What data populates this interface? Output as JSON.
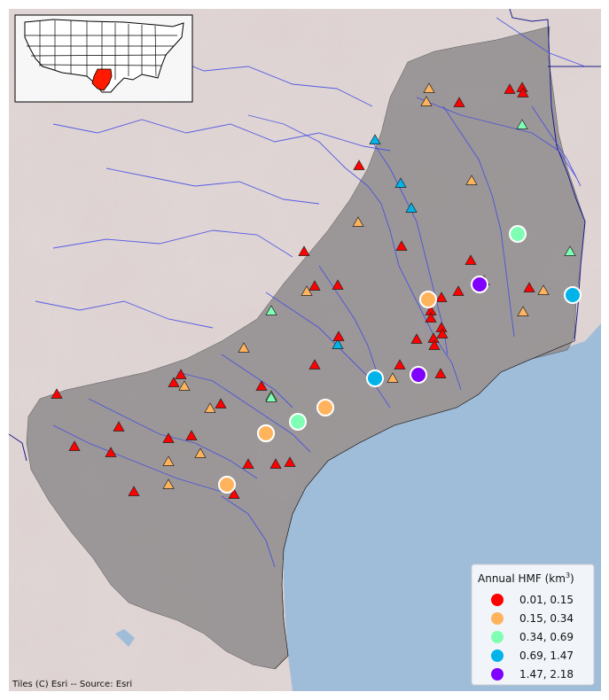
{
  "map": {
    "attribution": "Tiles (C) Esri -- Source: Esri",
    "colors": {
      "land": "#ddd2d1",
      "water": "#9fbcd9",
      "basin": "#8f8c8d",
      "rivers": "#3f45e6",
      "state_outline": "#1b1b8a",
      "inset_highlight": "#ff1a00"
    }
  },
  "legend": {
    "title": "Annual HMF (km",
    "title_sup": "3",
    "title_close": ")",
    "items": [
      {
        "label": "0.01, 0.15",
        "color": "#ff0000"
      },
      {
        "label": "0.15, 0.34",
        "color": "#ffb35c"
      },
      {
        "label": "0.34, 0.69",
        "color": "#80ffb4"
      },
      {
        "label": "0.69, 1.47",
        "color": "#00b4ea"
      },
      {
        "label": "1.47, 2.18",
        "color": "#8000ff"
      }
    ]
  },
  "sites": {
    "triangle_classes": [
      [
        0,
        0,
        0,
        0,
        1,
        1,
        2,
        3,
        0,
        3,
        3,
        1,
        1,
        0,
        0,
        2,
        0,
        0,
        0,
        1,
        2,
        1,
        0,
        1,
        0,
        0,
        0,
        0,
        0,
        0,
        0,
        0,
        1,
        3,
        0,
        0,
        0,
        1,
        0,
        0,
        1,
        1,
        0,
        2,
        0,
        0,
        1,
        0,
        0,
        1,
        0,
        0,
        0,
        0,
        0,
        0,
        1,
        0,
        0,
        0,
        0,
        2,
        0
      ]
    ],
    "circle_classes": [
      2,
      1,
      4,
      3,
      1,
      3,
      4,
      1,
      2,
      1,
      1
    ]
  }
}
